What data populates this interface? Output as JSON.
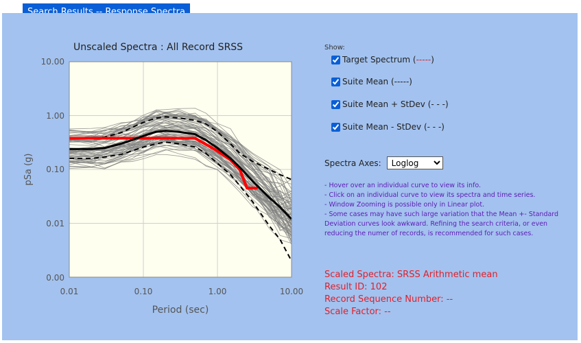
{
  "header": {
    "tab_label": "Search Results -- Response Spectra"
  },
  "chart": {
    "title": "Unscaled Spectra : All Record SRSS",
    "xlabel": "Period (sec)",
    "ylabel": "pSa (g)",
    "x_ticks": [
      "0.01",
      "0.10",
      "1.00",
      "10.00"
    ],
    "y_ticks": [
      "10.00",
      "1.00",
      "0.10",
      "0.01",
      "0.00"
    ]
  },
  "controls": {
    "show_label": "Show:",
    "options": [
      {
        "label": "Target Spectrum (",
        "suffix": "-----",
        "close": ")",
        "checked": true
      },
      {
        "label": "Suite Mean (-----)",
        "checked": true
      },
      {
        "label": "Suite Mean + StDev (- - -)",
        "checked": true
      },
      {
        "label": "Suite Mean - StDev (- - -)",
        "checked": true
      }
    ],
    "axes_label": "Spectra Axes:",
    "axes_value": "Loglog",
    "axes_options": [
      "Loglog"
    ]
  },
  "notes": [
    "- Hover over an individual curve to view its info.",
    "- Click on an individual curve to view its spectra and time series.",
    "- Window Zooming is possible only in Linear plot.",
    "- Some cases may have such large variation that the Mean +- Standard Deviation curves look awkward. Refining the search criteria, or even reducing the numer of records, is recommended for such cases."
  ],
  "info": {
    "scaled_spectra": "Scaled Spectra: SRSS Arithmetic mean",
    "result_id": "Result ID: 102",
    "record_sequence": "Record Sequence Number: --",
    "scale_factor": "Scale Factor: --"
  },
  "colors": {
    "accent": "#0a5fd6",
    "panel": "#a3c2ef",
    "plot_bg": "#fffff0",
    "target": "#ff0000",
    "records": "#808080",
    "notes": "#5c1bb5",
    "info": "#e0202a"
  },
  "chart_data": {
    "type": "line",
    "title": "Unscaled Spectra : All Record SRSS",
    "xlabel": "Period (sec)",
    "ylabel": "pSa (g)",
    "xscale": "log",
    "yscale": "log",
    "xlim": [
      0.01,
      10
    ],
    "ylim": [
      0.001,
      10
    ],
    "series": [
      {
        "name": "Target Spectrum",
        "style": "solid-red",
        "x": [
          0.01,
          0.03,
          0.05,
          0.1,
          0.2,
          0.3,
          0.5,
          1.0,
          1.5,
          2.0,
          2.5,
          3.0,
          3.5
        ],
        "y": [
          0.38,
          0.38,
          0.38,
          0.38,
          0.38,
          0.38,
          0.38,
          0.22,
          0.15,
          0.1,
          0.045,
          0.045,
          0.045
        ]
      },
      {
        "name": "Suite Mean",
        "style": "solid-black",
        "x": [
          0.01,
          0.02,
          0.03,
          0.05,
          0.07,
          0.1,
          0.15,
          0.2,
          0.3,
          0.5,
          0.7,
          1.0,
          1.5,
          2.0,
          3.0,
          5.0,
          7.0,
          10.0
        ],
        "y": [
          0.24,
          0.24,
          0.25,
          0.3,
          0.35,
          0.42,
          0.5,
          0.52,
          0.5,
          0.45,
          0.35,
          0.25,
          0.16,
          0.11,
          0.06,
          0.03,
          0.02,
          0.012
        ]
      },
      {
        "name": "Suite Mean + StDev",
        "style": "dashed-black",
        "x": [
          0.01,
          0.02,
          0.03,
          0.05,
          0.07,
          0.1,
          0.15,
          0.2,
          0.3,
          0.5,
          0.7,
          1.0,
          1.5,
          2.0,
          3.0,
          5.0,
          7.0,
          10.0
        ],
        "y": [
          0.38,
          0.38,
          0.4,
          0.48,
          0.6,
          0.75,
          0.9,
          0.95,
          0.9,
          0.82,
          0.7,
          0.5,
          0.3,
          0.2,
          0.14,
          0.1,
          0.08,
          0.065
        ]
      },
      {
        "name": "Suite Mean - StDev",
        "style": "dashed-black",
        "x": [
          0.01,
          0.02,
          0.03,
          0.05,
          0.07,
          0.1,
          0.15,
          0.2,
          0.3,
          0.5,
          0.7,
          1.0,
          1.5,
          2.0,
          3.0,
          5.0,
          7.0,
          10.0
        ],
        "y": [
          0.16,
          0.16,
          0.17,
          0.19,
          0.22,
          0.26,
          0.3,
          0.32,
          0.3,
          0.26,
          0.2,
          0.13,
          0.08,
          0.05,
          0.025,
          0.009,
          0.005,
          0.002
        ]
      }
    ]
  }
}
